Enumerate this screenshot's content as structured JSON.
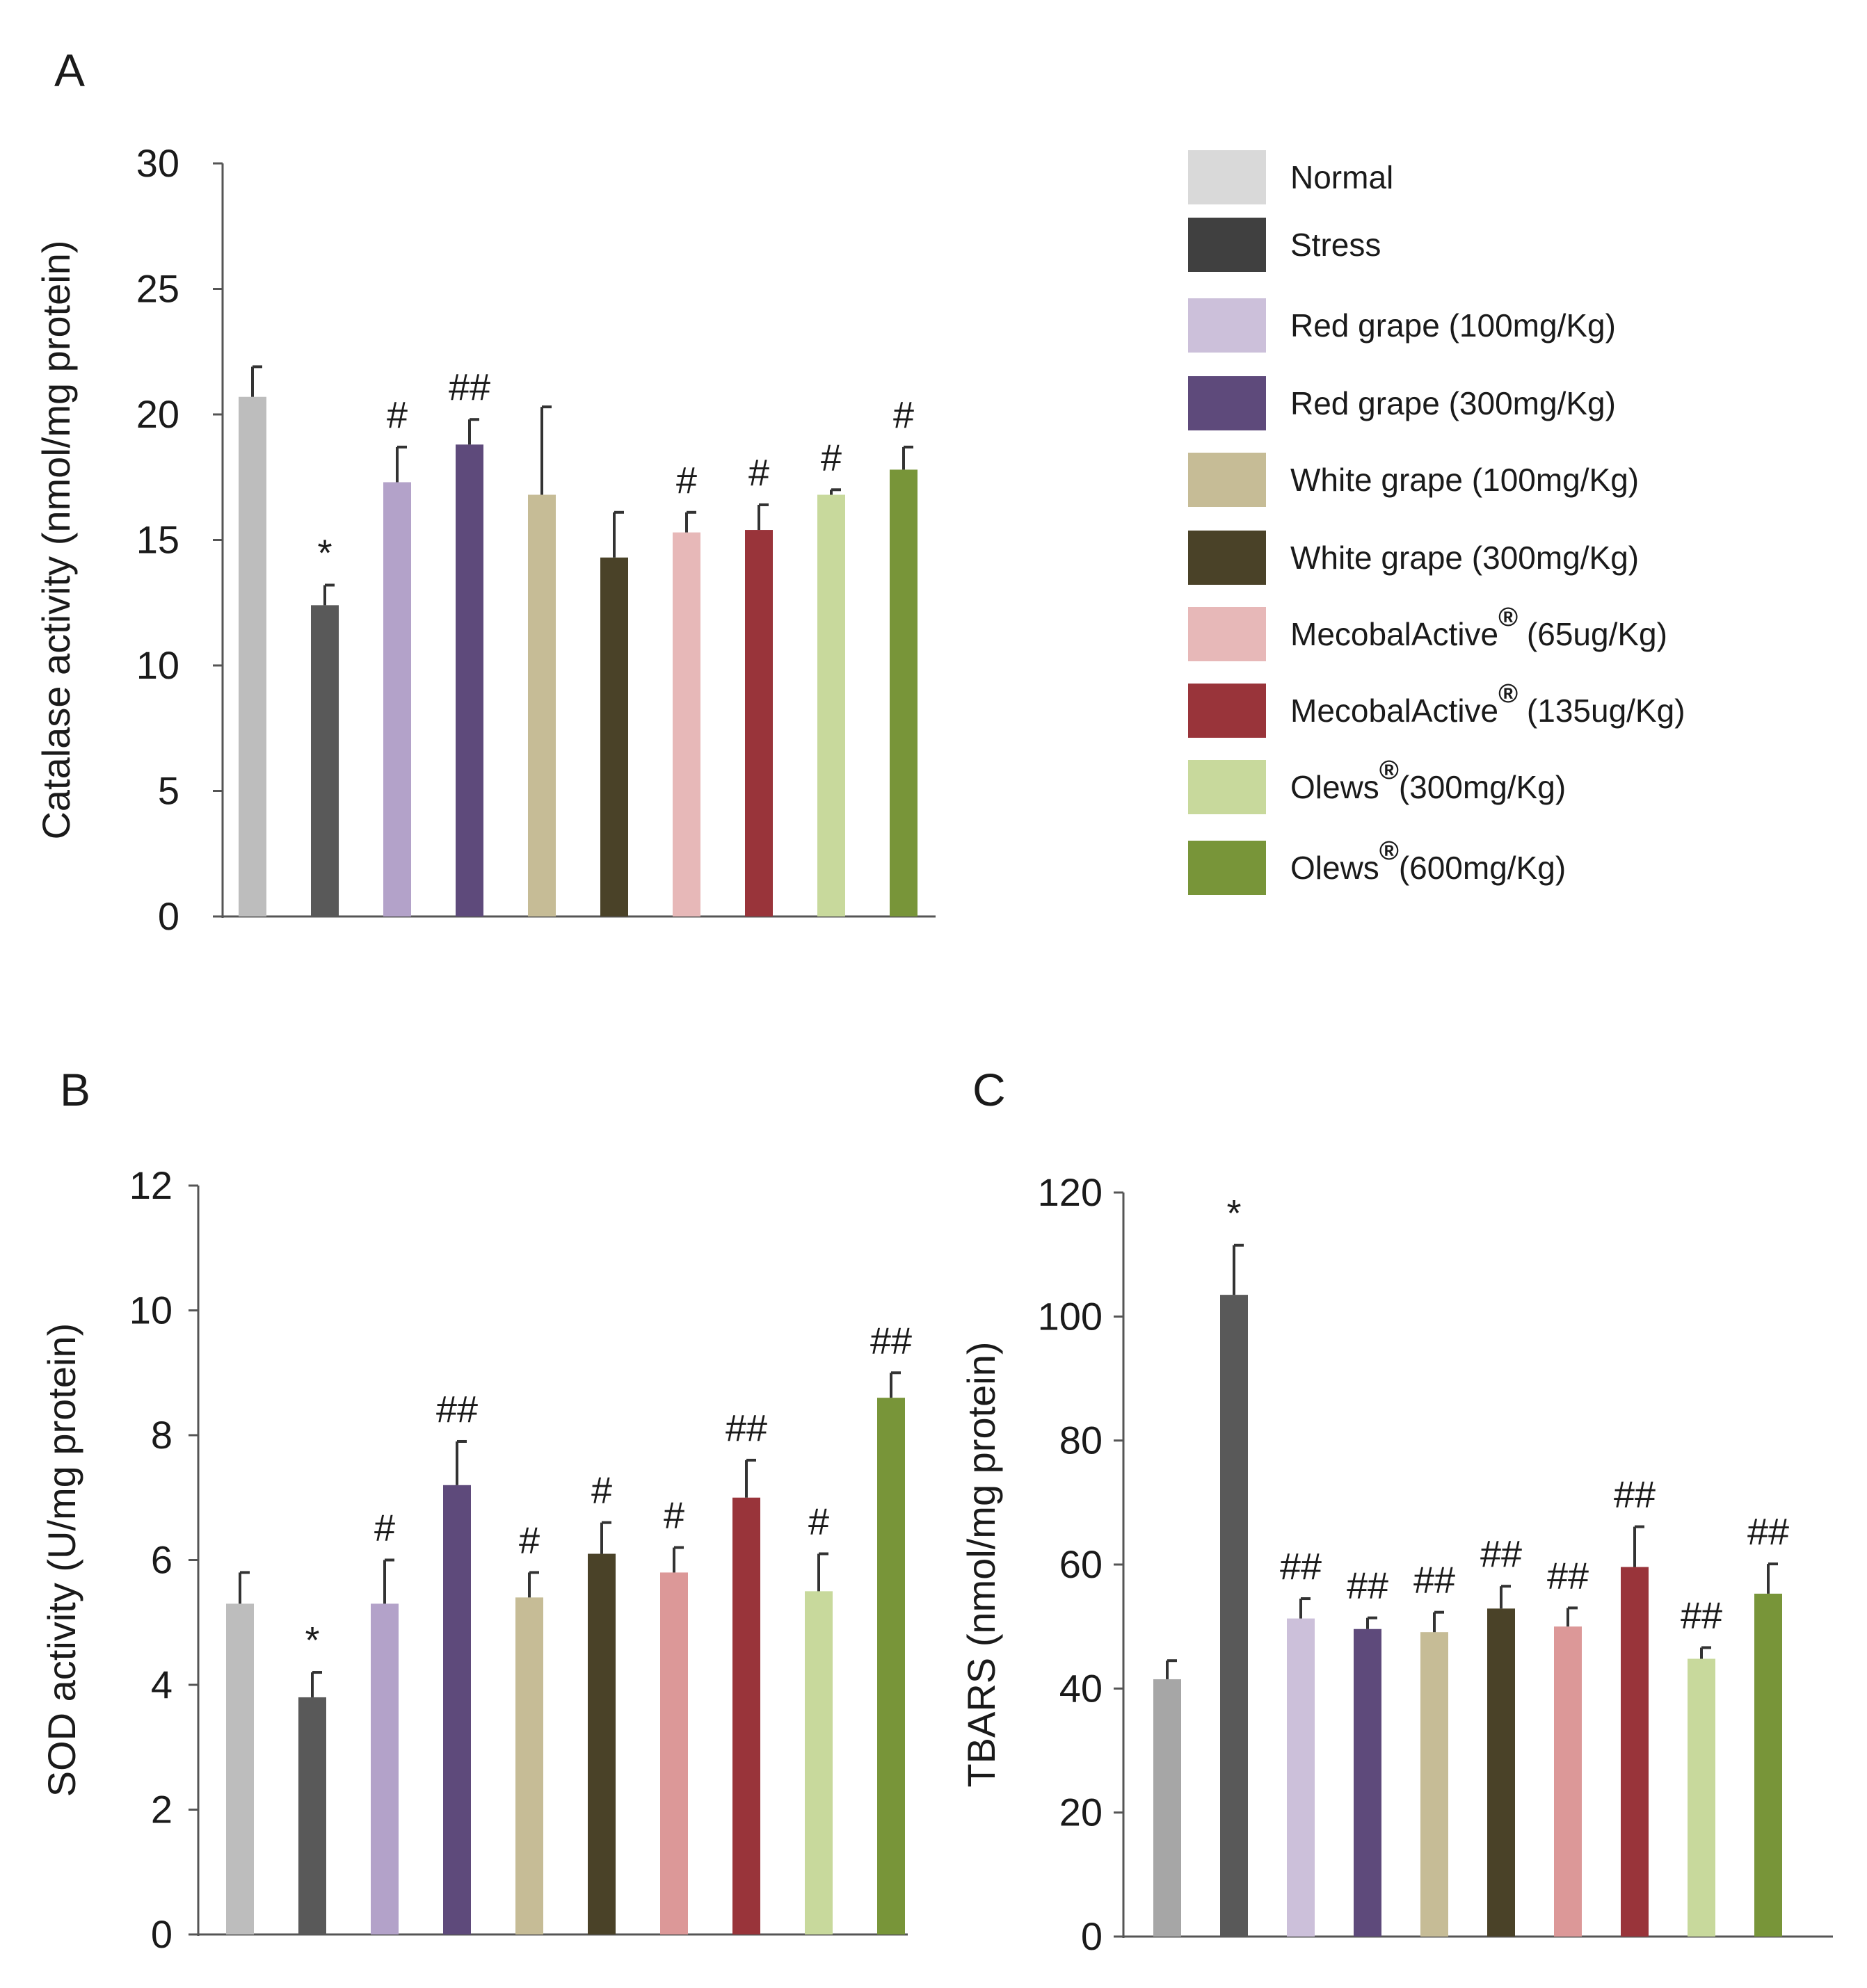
{
  "colors": [
    "#bdbdbd",
    "#595959",
    "#b3a2c9",
    "#5e4a7b",
    "#c6bc96",
    "#4a4228",
    "#e7b8b8",
    "#99343a",
    "#c8d99c",
    "#789539"
  ],
  "legend": {
    "items": [
      {
        "label": "Normal",
        "color": "#d9d9d9"
      },
      {
        "label": "Stress",
        "color": "#404040"
      },
      {
        "label": "Red grape (100mg/Kg)",
        "color": "#ccc0da"
      },
      {
        "label": "Red grape (300mg/Kg)",
        "color": "#5e4a7b"
      },
      {
        "label": "White grape (100mg/Kg)",
        "color": "#c6bc96"
      },
      {
        "label": "White grape (300mg/Kg)",
        "color": "#4a4228"
      },
      {
        "label": "MecobalActive",
        "reg": "®",
        "suffix": " (65ug/Kg)",
        "color": "#e7b8b8"
      },
      {
        "label": "MecobalActive",
        "reg": "®",
        "suffix": " (135ug/Kg)",
        "color": "#99343a"
      },
      {
        "label": "Olews",
        "reg": "®",
        "suffix": "(300mg/Kg)",
        "color": "#c8d99c"
      },
      {
        "label": "Olews",
        "reg": "®",
        "suffix": "(600mg/Kg)",
        "color": "#789539"
      }
    ]
  },
  "chart_data": [
    {
      "panel": "A",
      "type": "bar",
      "ylabel": "Catalase activity (nmol/mg protein)",
      "ylim": [
        0,
        30
      ],
      "yticks": [
        0,
        5,
        10,
        15,
        20,
        25,
        30
      ],
      "categories": [
        "Normal",
        "Stress",
        "Red grape (100mg/Kg)",
        "Red grape (300mg/Kg)",
        "White grape (100mg/Kg)",
        "White grape (300mg/Kg)",
        "MecobalActive® (65ug/Kg)",
        "MecobalActive® (135ug/Kg)",
        "Olews® (300mg/Kg)",
        "Olews® (600mg/Kg)"
      ],
      "values": [
        20.7,
        12.4,
        17.3,
        18.8,
        16.8,
        14.3,
        15.3,
        15.4,
        16.8,
        17.8
      ],
      "errors": [
        1.2,
        0.8,
        1.4,
        1.0,
        3.5,
        1.8,
        0.8,
        1.0,
        0.2,
        0.9
      ],
      "annotations": [
        "",
        "*",
        "#",
        "##",
        "",
        "",
        "#",
        "#",
        "#",
        "#"
      ]
    },
    {
      "panel": "B",
      "type": "bar",
      "ylabel": "SOD activity (U/mg protein)",
      "ylim": [
        0,
        12
      ],
      "yticks": [
        0,
        2,
        4,
        6,
        8,
        10,
        12
      ],
      "categories": [
        "Normal",
        "Stress",
        "Red grape (100mg/Kg)",
        "Red grape (300mg/Kg)",
        "White grape (100mg/Kg)",
        "White grape (300mg/Kg)",
        "MecobalActive® (65ug/Kg)",
        "MecobalActive® (135ug/Kg)",
        "Olews® (300mg/Kg)",
        "Olews® (600mg/Kg)"
      ],
      "values": [
        5.3,
        3.8,
        5.3,
        7.2,
        5.4,
        6.1,
        5.8,
        7.0,
        5.5,
        8.6
      ],
      "errors": [
        0.5,
        0.4,
        0.7,
        0.7,
        0.4,
        0.5,
        0.4,
        0.6,
        0.6,
        0.4
      ],
      "annotations": [
        "",
        "*",
        "#",
        "##",
        "#",
        "#",
        "#",
        "##",
        "#",
        "##"
      ],
      "colors": [
        "#bdbdbd",
        "#595959",
        "#b3a2c9",
        "#5e4a7b",
        "#c6bc96",
        "#4a4228",
        "#dc9898",
        "#99343a",
        "#c8d99c",
        "#789539"
      ]
    },
    {
      "panel": "C",
      "type": "bar",
      "ylabel": "TBARS (nmol/mg protein)",
      "ylim": [
        0,
        120
      ],
      "yticks": [
        0,
        20,
        40,
        60,
        80,
        100,
        120
      ],
      "categories": [
        "Normal",
        "Stress",
        "Red grape (100mg/Kg)",
        "Red grape (300mg/Kg)",
        "White grape (100mg/Kg)",
        "White grape (300mg/Kg)",
        "MecobalActive® (65ug/Kg)",
        "MecobalActive® (135ug/Kg)",
        "Olews® (300mg/Kg)",
        "Olews® (600mg/Kg)"
      ],
      "values": [
        41.5,
        103.5,
        51.3,
        49.6,
        49.1,
        52.9,
        50.0,
        59.6,
        44.8,
        55.3
      ],
      "errors": [
        3.0,
        8.0,
        3.2,
        1.8,
        3.2,
        3.6,
        3.0,
        6.5,
        1.8,
        4.8
      ],
      "annotations": [
        "",
        "*",
        "##",
        "##",
        "##",
        "##",
        "##",
        "##",
        "##",
        "##"
      ],
      "colors": [
        "#a6a6a6",
        "#595959",
        "#ccc0da",
        "#5e4a7b",
        "#c6bc96",
        "#4a4228",
        "#dc9898",
        "#99343a",
        "#c8d99c",
        "#789539"
      ]
    }
  ]
}
